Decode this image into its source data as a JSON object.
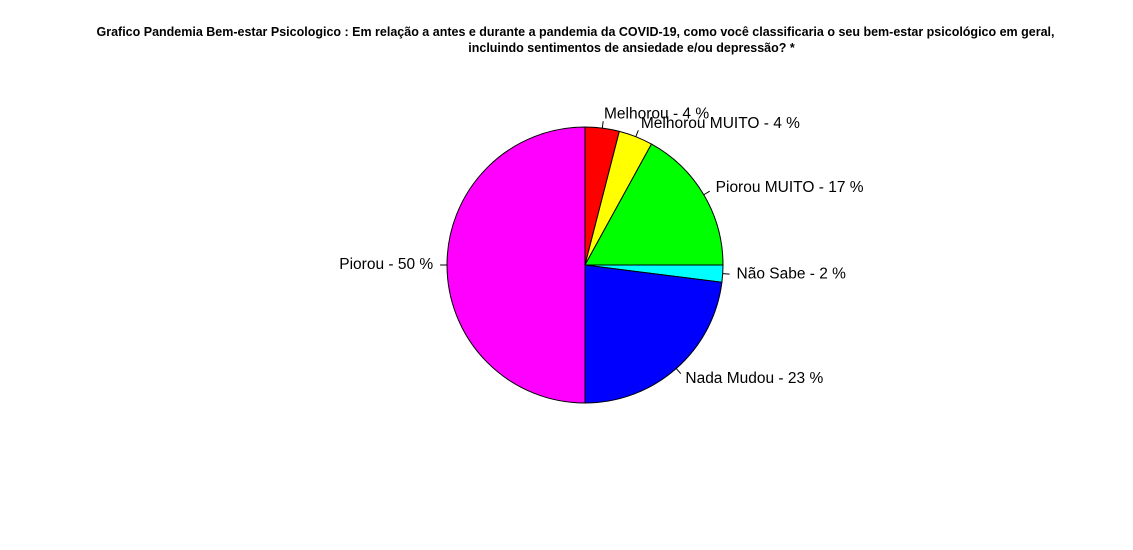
{
  "chart_data": {
    "type": "pie",
    "title_lines": [
      "Grafico Pandemia Bem-estar Psicologico : Em relação a antes e durante a pandemia da COVID-19, como você classificaria o seu bem-estar psicológico em geral,",
      "incluindo sentimentos de ansiedade e/ou depressão? *"
    ],
    "slices": [
      {
        "label": "Melhorou - 4 %",
        "category": "Melhorou",
        "value": 4,
        "color": "#FF0000"
      },
      {
        "label": "Melhorou MUITO - 4 %",
        "category": "Melhorou MUITO",
        "value": 4,
        "color": "#FFFF00"
      },
      {
        "label": "Piorou MUITO - 17 %",
        "category": "Piorou MUITO",
        "value": 17,
        "color": "#00FF00"
      },
      {
        "label": "Não Sabe - 2 %",
        "category": "Não Sabe",
        "value": 2,
        "color": "#00FFFF"
      },
      {
        "label": "Nada Mudou - 23 %",
        "category": "Nada Mudou",
        "value": 23,
        "color": "#0000FF"
      },
      {
        "label": "Piorou - 50 %",
        "category": "Piorou",
        "value": 50,
        "color": "#FF00FF"
      }
    ],
    "direction": "clockwise",
    "start": "top",
    "legend": "none"
  }
}
